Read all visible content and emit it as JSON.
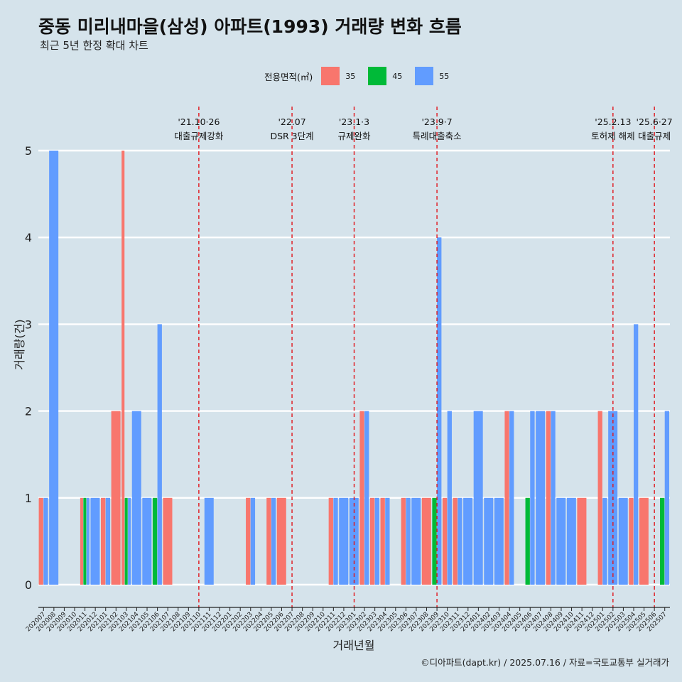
{
  "header": {
    "title": "중동 미리내마을(삼성) 아파트(1993) 거래량 변화 흐름",
    "subtitle": "최근 5년 한정 확대 차트"
  },
  "legend": {
    "title": "전용면적(㎡)",
    "items": [
      {
        "label": "35",
        "color": "#f8766d"
      },
      {
        "label": "45",
        "color": "#00ba38"
      },
      {
        "label": "55",
        "color": "#619cff"
      }
    ]
  },
  "footer": {
    "caption": "©디아파트(dapt.kr) / 2025.07.16 / 자료=국토교통부 실거래가"
  },
  "chart_data": {
    "type": "bar",
    "xlabel": "거래년월",
    "ylabel": "거래량(건)",
    "ylim": [
      0,
      5
    ],
    "yticks": [
      0,
      1,
      2,
      3,
      4,
      5
    ],
    "grid": true,
    "legend_position": "top",
    "categories": [
      "202007",
      "202008",
      "202009",
      "202010",
      "202011",
      "202012",
      "202101",
      "202102",
      "202103",
      "202104",
      "202105",
      "202106",
      "202107",
      "202108",
      "202109",
      "202110",
      "202111",
      "202112",
      "202201",
      "202202",
      "202203",
      "202204",
      "202205",
      "202206",
      "202207",
      "202208",
      "202209",
      "202210",
      "202211",
      "202212",
      "202301",
      "202302",
      "202303",
      "202304",
      "202305",
      "202306",
      "202307",
      "202308",
      "202309",
      "202310",
      "202311",
      "202312",
      "202401",
      "202402",
      "202403",
      "202404",
      "202405",
      "202406",
      "202407",
      "202408",
      "202409",
      "202410",
      "202411",
      "202412",
      "202501",
      "202502",
      "202503",
      "202504",
      "202505",
      "202506",
      "202507"
    ],
    "series": [
      {
        "name": "35",
        "color": "#f8766d",
        "values": [
          1,
          0,
          0,
          0,
          1,
          0,
          1,
          2,
          5,
          0,
          0,
          0,
          1,
          0,
          0,
          0,
          0,
          0,
          0,
          0,
          1,
          0,
          1,
          1,
          0,
          0,
          0,
          0,
          1,
          0,
          0,
          2,
          1,
          1,
          0,
          1,
          0,
          1,
          0,
          1,
          1,
          0,
          0,
          0,
          0,
          2,
          0,
          0,
          0,
          2,
          0,
          0,
          1,
          0,
          2,
          0,
          0,
          1,
          1,
          0,
          0
        ]
      },
      {
        "name": "45",
        "color": "#00ba38",
        "values": [
          0,
          0,
          0,
          0,
          1,
          0,
          0,
          0,
          1,
          0,
          0,
          1,
          0,
          0,
          0,
          0,
          0,
          0,
          0,
          0,
          0,
          0,
          0,
          0,
          0,
          0,
          0,
          0,
          0,
          0,
          0,
          0,
          0,
          0,
          0,
          0,
          0,
          0,
          1,
          0,
          0,
          0,
          0,
          0,
          0,
          0,
          0,
          1,
          0,
          0,
          0,
          0,
          0,
          0,
          0,
          0,
          0,
          0,
          0,
          0,
          1
        ]
      },
      {
        "name": "55",
        "color": "#619cff",
        "values": [
          1,
          5,
          0,
          0,
          1,
          1,
          1,
          0,
          1,
          2,
          1,
          3,
          0,
          0,
          0,
          0,
          1,
          0,
          0,
          0,
          1,
          0,
          1,
          0,
          0,
          0,
          0,
          0,
          1,
          1,
          1,
          2,
          1,
          1,
          0,
          1,
          1,
          0,
          4,
          2,
          1,
          1,
          2,
          1,
          1,
          2,
          0,
          2,
          2,
          2,
          1,
          1,
          0,
          0,
          1,
          2,
          1,
          3,
          0,
          0,
          2
        ]
      }
    ],
    "events": [
      {
        "date": "202110",
        "label": "'21.10·26",
        "desc": "대출규제강화"
      },
      {
        "date": "202207",
        "label": "'22.07",
        "desc": "DSR 3단계"
      },
      {
        "date": "202301",
        "label": "'23.1·3",
        "desc": "규제완화"
      },
      {
        "date": "202309",
        "label": "'23.9·7",
        "desc": "특례대출축소"
      },
      {
        "date": "202502",
        "label": "'25.2.13",
        "desc": "토허제 해제"
      },
      {
        "date": "202506",
        "label": "'25.6·27",
        "desc": "대출규제"
      }
    ]
  }
}
